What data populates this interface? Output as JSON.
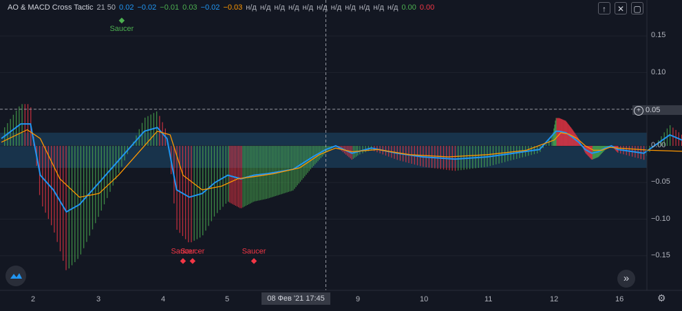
{
  "legend": {
    "title": "AO & MACD Cross Tactic",
    "params": "21 50",
    "values": [
      {
        "text": "0.02",
        "color": "#2196f3"
      },
      {
        "text": "−0.02",
        "color": "#2196f3"
      },
      {
        "text": "−0.01",
        "color": "#4caf50"
      },
      {
        "text": "0.03",
        "color": "#4caf50"
      },
      {
        "text": "−0.02",
        "color": "#2196f3"
      },
      {
        "text": "−0.03",
        "color": "#ff9800"
      },
      {
        "text": "н/д",
        "color": "#b2b5be"
      },
      {
        "text": "н/д",
        "color": "#b2b5be"
      },
      {
        "text": "н/д",
        "color": "#b2b5be"
      },
      {
        "text": "н/д",
        "color": "#b2b5be"
      },
      {
        "text": "н/д",
        "color": "#b2b5be"
      },
      {
        "text": "н/д",
        "color": "#b2b5be"
      },
      {
        "text": "н/д",
        "color": "#b2b5be"
      },
      {
        "text": "н/д",
        "color": "#b2b5be"
      },
      {
        "text": "н/д",
        "color": "#b2b5be"
      },
      {
        "text": "н/д",
        "color": "#b2b5be"
      },
      {
        "text": "н/д",
        "color": "#b2b5be"
      },
      {
        "text": "0.00",
        "color": "#4caf50"
      },
      {
        "text": "0.00",
        "color": "#f23645"
      }
    ]
  },
  "controls": {
    "up_icon": "arrow-up-icon",
    "close_icon": "close-icon",
    "restore_icon": "restore-icon",
    "up": "↑",
    "close": "✕",
    "restore": "▢"
  },
  "crosshair": {
    "price_label": "0.05",
    "price": 0.05,
    "time_label": "08 Фев '21  17:45",
    "time_x": 8.0
  },
  "scroll_button": "»",
  "settings_icon": "⚙",
  "colors": {
    "background": "#131722",
    "macd": "#2196f3",
    "signal": "#ff9800",
    "bull": "#4caf50",
    "bear": "#f23645",
    "band": "#1e4a6e",
    "purple": "#9c27b0",
    "yellow": "#ffeb3b"
  },
  "chart_data": {
    "type": "line",
    "xlabel": "",
    "ylabel": "",
    "x_ticks": [
      {
        "v": 2,
        "label": "2"
      },
      {
        "v": 3,
        "label": "3"
      },
      {
        "v": 4,
        "label": "4"
      },
      {
        "v": 5,
        "label": "5"
      },
      {
        "v": 9,
        "label": "9"
      },
      {
        "v": 10,
        "label": "10"
      },
      {
        "v": 11,
        "label": "11"
      },
      {
        "v": 12,
        "label": "12"
      },
      {
        "v": 16,
        "label": "16"
      }
    ],
    "y_ticks": [
      0.15,
      0.1,
      0.05,
      0.0,
      -0.05,
      -0.1,
      -0.15
    ],
    "y_tick_labels": [
      "0.15",
      "0.10",
      "0.05",
      "0.00",
      "−0.05",
      "−0.10",
      "−0.15"
    ],
    "ylim": [
      -0.2,
      0.2
    ],
    "xlim": [
      1.5,
      17.3
    ],
    "band": {
      "upper": 0.018,
      "lower": -0.03
    },
    "series": [
      {
        "name": "macd",
        "color": "#2196f3",
        "points": [
          [
            1.5,
            0.01
          ],
          [
            1.8,
            0.03
          ],
          [
            1.95,
            0.03
          ],
          [
            2.1,
            -0.04
          ],
          [
            2.3,
            -0.06
          ],
          [
            2.5,
            -0.09
          ],
          [
            2.7,
            -0.08
          ],
          [
            3.0,
            -0.05
          ],
          [
            3.3,
            -0.02
          ],
          [
            3.5,
            0.0
          ],
          [
            3.7,
            0.02
          ],
          [
            3.9,
            0.025
          ],
          [
            4.05,
            0.01
          ],
          [
            4.2,
            -0.06
          ],
          [
            4.4,
            -0.07
          ],
          [
            4.6,
            -0.065
          ],
          [
            4.8,
            -0.05
          ],
          [
            5.0,
            -0.04
          ],
          [
            5.4,
            -0.045
          ],
          [
            5.8,
            -0.04
          ],
          [
            6.2,
            -0.038
          ],
          [
            7.0,
            -0.032
          ],
          [
            7.6,
            -0.015
          ],
          [
            8.0,
            -0.005
          ],
          [
            8.3,
            0.0
          ],
          [
            8.8,
            -0.01
          ],
          [
            9.2,
            -0.003
          ],
          [
            9.6,
            -0.01
          ],
          [
            10.0,
            -0.015
          ],
          [
            10.5,
            -0.018
          ],
          [
            11.0,
            -0.015
          ],
          [
            11.4,
            -0.01
          ],
          [
            11.8,
            -0.005
          ],
          [
            12.2,
            0.02
          ],
          [
            12.4,
            0.02
          ],
          [
            12.8,
            0.018
          ],
          [
            13.2,
            0.012
          ],
          [
            13.6,
            0.005
          ],
          [
            14.0,
            -0.005
          ],
          [
            14.4,
            -0.01
          ],
          [
            14.8,
            -0.008
          ],
          [
            15.2,
            -0.003
          ],
          [
            15.6,
            0.0
          ],
          [
            16.0,
            -0.005
          ],
          [
            16.4,
            -0.01
          ],
          [
            16.8,
            0.015
          ],
          [
            17.2,
            0.0
          ]
        ]
      },
      {
        "name": "signal",
        "color": "#ff9800",
        "points": [
          [
            1.5,
            0.005
          ],
          [
            1.9,
            0.022
          ],
          [
            2.1,
            0.01
          ],
          [
            2.4,
            -0.045
          ],
          [
            2.7,
            -0.07
          ],
          [
            3.0,
            -0.065
          ],
          [
            3.3,
            -0.04
          ],
          [
            3.6,
            -0.01
          ],
          [
            3.9,
            0.02
          ],
          [
            4.1,
            0.015
          ],
          [
            4.3,
            -0.04
          ],
          [
            4.6,
            -0.06
          ],
          [
            4.9,
            -0.055
          ],
          [
            5.3,
            -0.045
          ],
          [
            5.8,
            -0.042
          ],
          [
            6.4,
            -0.038
          ],
          [
            7.2,
            -0.03
          ],
          [
            7.8,
            -0.012
          ],
          [
            8.3,
            -0.003
          ],
          [
            8.8,
            -0.008
          ],
          [
            9.3,
            -0.005
          ],
          [
            9.8,
            -0.012
          ],
          [
            10.4,
            -0.015
          ],
          [
            11.0,
            -0.012
          ],
          [
            11.6,
            -0.006
          ],
          [
            12.1,
            0.008
          ],
          [
            12.5,
            0.018
          ],
          [
            13.0,
            0.016
          ],
          [
            13.5,
            0.01
          ],
          [
            14.0,
            0.0
          ],
          [
            14.5,
            -0.006
          ],
          [
            15.0,
            -0.006
          ],
          [
            15.5,
            -0.002
          ],
          [
            16.0,
            -0.003
          ],
          [
            16.5,
            -0.006
          ],
          [
            17.2,
            -0.008
          ]
        ]
      }
    ],
    "labels": [
      {
        "x": 3.35,
        "y": 0.155,
        "text": "Saucer",
        "color": "#4caf50"
      },
      {
        "x": 4.3,
        "y": -0.145,
        "text": "Saucer",
        "color": "#f23645"
      },
      {
        "x": 4.45,
        "y": -0.145,
        "text": "Saucer",
        "color": "#f23645"
      },
      {
        "x": 5.8,
        "y": -0.145,
        "text": "Saucer",
        "color": "#f23645"
      }
    ]
  }
}
